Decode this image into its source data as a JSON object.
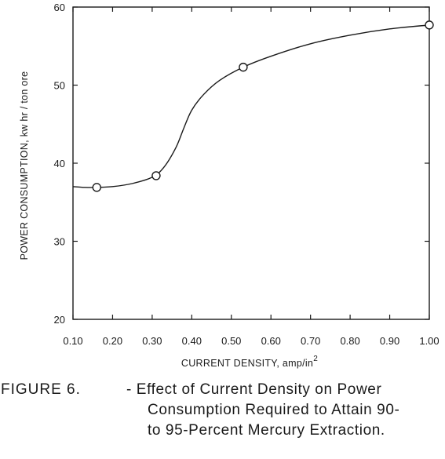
{
  "chart_data": {
    "type": "line",
    "ylabel": "POWER CONSUMPTION, kw hr / ton ore",
    "xlabel": "CURRENT DENSITY, amp/in",
    "xlabel_superscript": "2",
    "xlim": [
      0.1,
      1.0
    ],
    "ylim": [
      20,
      60
    ],
    "x_ticks": [
      0.1,
      0.2,
      0.3,
      0.4,
      0.5,
      0.6,
      0.7,
      0.8,
      0.9,
      1.0
    ],
    "x_tick_labels": [
      "0.10",
      "0.20",
      "0.30",
      "0.40",
      "0.50",
      "0.60",
      "0.70",
      "0.80",
      "0.90",
      "1.00"
    ],
    "y_ticks": [
      20,
      30,
      40,
      50,
      60
    ],
    "y_tick_labels": [
      "20",
      "30",
      "40",
      "50",
      "60"
    ],
    "grid": false,
    "series": [
      {
        "points": [
          {
            "x": 0.16,
            "y": 36.9
          },
          {
            "x": 0.31,
            "y": 38.4
          },
          {
            "x": 0.53,
            "y": 52.3
          },
          {
            "x": 1.0,
            "y": 57.7
          }
        ],
        "curve": [
          [
            0.1,
            37.0
          ],
          [
            0.13,
            36.9
          ],
          [
            0.16,
            36.9
          ],
          [
            0.2,
            37.0
          ],
          [
            0.25,
            37.4
          ],
          [
            0.3,
            38.2
          ],
          [
            0.33,
            39.5
          ],
          [
            0.36,
            42.0
          ],
          [
            0.38,
            44.5
          ],
          [
            0.4,
            46.8
          ],
          [
            0.43,
            48.8
          ],
          [
            0.47,
            50.6
          ],
          [
            0.53,
            52.3
          ],
          [
            0.6,
            53.7
          ],
          [
            0.7,
            55.3
          ],
          [
            0.8,
            56.4
          ],
          [
            0.9,
            57.2
          ],
          [
            1.0,
            57.7
          ]
        ]
      }
    ]
  },
  "caption": {
    "figure_label": "FIGURE 6.",
    "line1": "- Effect of Current Density on Power",
    "line2": "Consumption Required to Attain 90-",
    "line3": "to 95-Percent Mercury Extraction."
  }
}
